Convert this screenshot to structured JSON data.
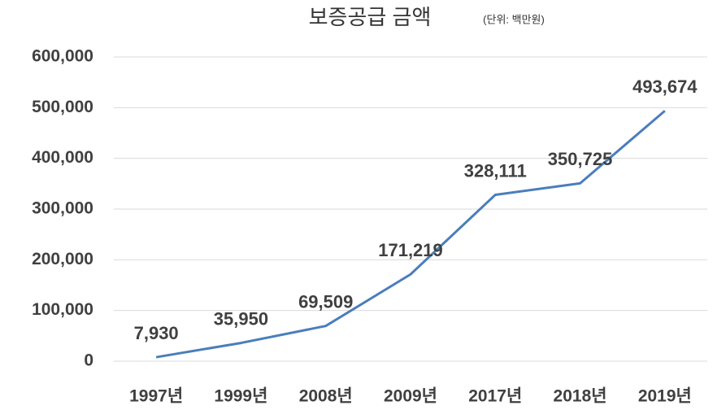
{
  "chart_data": {
    "type": "line",
    "title": "보증공급 금액",
    "subtitle": "(단위: 백만원)",
    "categories": [
      "1997년",
      "1999년",
      "2008년",
      "2009년",
      "2017년",
      "2018년",
      "2019년"
    ],
    "series": [
      {
        "name": "보증공급 금액",
        "color": "#4a7ebb",
        "values": [
          7930,
          35950,
          69509,
          171219,
          328111,
          350725,
          493674
        ],
        "value_labels": [
          "7,930",
          "35,950",
          "69,509",
          "171,219",
          "328,111",
          "350,725",
          "493,674"
        ]
      }
    ],
    "ylim": [
      0,
      600000
    ],
    "yticks": [
      0,
      {
        "value": 100000,
        "label": "100,000"
      },
      {
        "value": 200000,
        "label": "200,000"
      },
      {
        "value": 300000,
        "label": "300,000"
      },
      {
        "value": 400000,
        "label": "400,000"
      },
      {
        "value": 500000,
        "label": "500,000"
      },
      {
        "value": 600000,
        "label": "600,000"
      }
    ],
    "grid": true
  }
}
